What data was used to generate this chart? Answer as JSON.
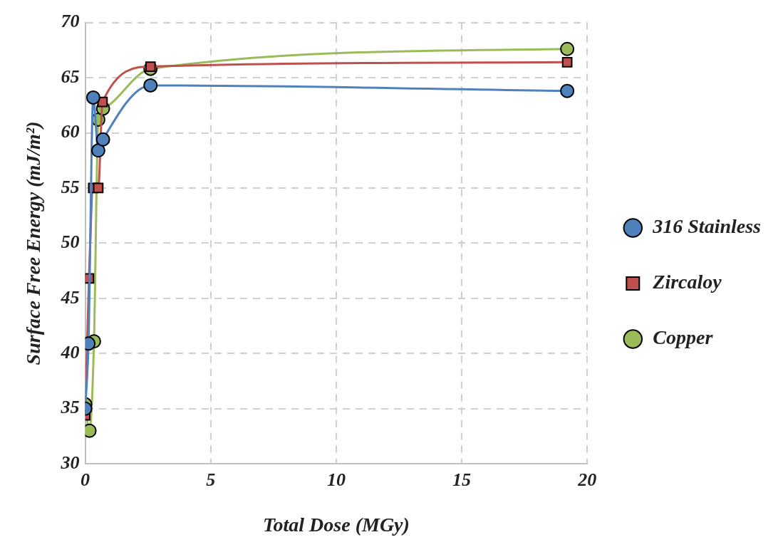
{
  "chart_data": {
    "type": "line",
    "xlabel": "Total Dose (MGy)",
    "ylabel": "Surface Free Energy (mJ/m²)",
    "xlim": [
      0,
      20
    ],
    "xticks": [
      0,
      5,
      10,
      15,
      20
    ],
    "ylim": [
      30,
      70
    ],
    "yticks": [
      30,
      35,
      40,
      45,
      50,
      55,
      60,
      65,
      70
    ],
    "grid": true,
    "legend": "right",
    "marker": "circle",
    "line_style": "solid",
    "series": [
      {
        "name": "316 Stainless",
        "color": "#4f81bd",
        "x": [
          0,
          0.13,
          0.32,
          0.52,
          0.71,
          2.6,
          19.2
        ],
        "values": [
          35,
          40.9,
          63.2,
          58.4,
          59.4,
          64.3,
          63.8
        ]
      },
      {
        "name": "Zircaloy",
        "color": "#c0504d",
        "marker": "square",
        "x": [
          0,
          0.15,
          0.32,
          0.52,
          0.69,
          2.6,
          19.2
        ],
        "values": [
          34.4,
          46.8,
          55,
          55,
          62.8,
          66,
          66.4
        ]
      },
      {
        "name": "Copper",
        "color": "#9bbb59",
        "x": [
          0,
          0.17,
          0.35,
          0.52,
          0.71,
          2.6,
          19.2
        ],
        "values": [
          35.4,
          33,
          41.1,
          61.2,
          62.2,
          65.8,
          67.6
        ]
      }
    ]
  }
}
